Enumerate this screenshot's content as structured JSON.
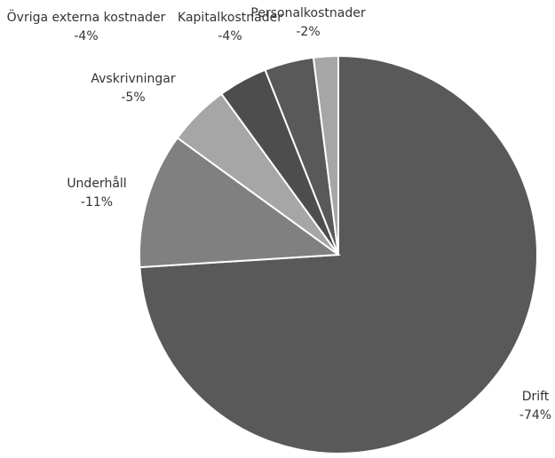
{
  "chart_data": {
    "type": "pie",
    "title": "",
    "start_angle_deg": 0,
    "direction": "clockwise",
    "slices": [
      {
        "label": "Drift",
        "value_label": "-74%",
        "value": 74,
        "color": "#595959"
      },
      {
        "label": "Underhåll",
        "value_label": "-11%",
        "value": 11,
        "color": "#808080"
      },
      {
        "label": "Avskrivningar",
        "value_label": "-5%",
        "value": 5,
        "color": "#a6a6a6"
      },
      {
        "label": "Övriga externa kostnader",
        "value_label": "-4%",
        "value": 4,
        "color": "#4d4d4d"
      },
      {
        "label": "Kapitalkostnader",
        "value_label": "-4%",
        "value": 4,
        "color": "#595959"
      },
      {
        "label": "Personalkostnader",
        "value_label": "-2%",
        "value": 2,
        "color": "#a6a6a6"
      }
    ],
    "legend": "none",
    "data_labels": "outside"
  }
}
